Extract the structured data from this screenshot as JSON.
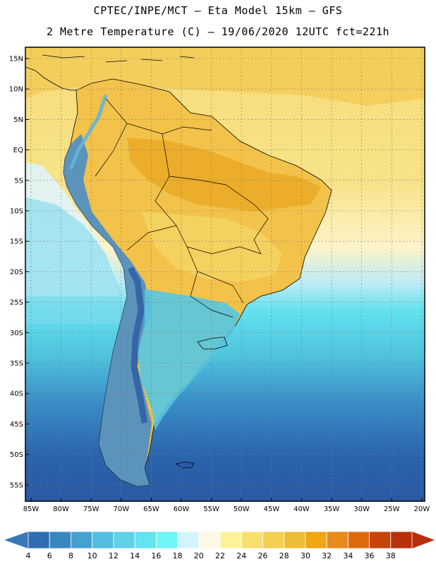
{
  "header": {
    "line1": "CPTEC/INPE/MCT  –   Eta Model 15km  –  GFS",
    "line2": "2 Metre Temperature (C) – 19/06/2020 12UTC fct=221h"
  },
  "map": {
    "lat_labels": [
      "15N",
      "10N",
      "5N",
      "EQ",
      "5S",
      "10S",
      "15S",
      "20S",
      "25S",
      "30S",
      "35S",
      "40S",
      "45S",
      "50S",
      "55S"
    ],
    "lon_labels": [
      "85W",
      "80W",
      "75W",
      "70W",
      "65W",
      "60W",
      "55W",
      "50W",
      "45W",
      "40W",
      "35W",
      "30W",
      "25W",
      "20W"
    ],
    "colors": {
      "land_line": "#000000",
      "ocean_deep": "#2a5ca6",
      "ocean_mid": "#3b8ec8",
      "ocean_light": "#4fc3dc",
      "warm_base": "#f2d05a",
      "hot": "#eab02a"
    }
  },
  "colorbar": {
    "labels": [
      "4",
      "6",
      "8",
      "10",
      "12",
      "14",
      "16",
      "18",
      "20",
      "22",
      "24",
      "26",
      "28",
      "30",
      "32",
      "34",
      "36",
      "38"
    ],
    "colors": [
      "#2f6db0",
      "#3788c0",
      "#44a2d0",
      "#52bde0",
      "#5fd2e8",
      "#63e4ee",
      "#6ff6f8",
      "#d3f4fb",
      "#fdf8e6",
      "#fdf19a",
      "#f8e06e",
      "#f3cf52",
      "#edbd3a",
      "#f0a615",
      "#e88a1c",
      "#de6a10",
      "#c6440a",
      "#b8300c"
    ],
    "low_cap_color": "#3a78b8",
    "high_cap_color": "#b8300c"
  }
}
